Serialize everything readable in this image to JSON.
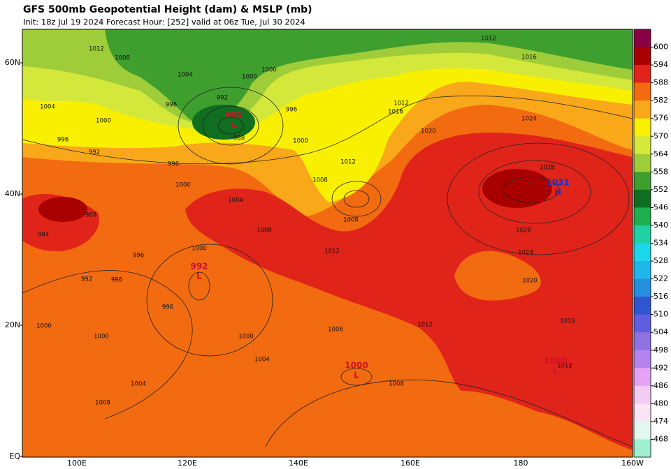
{
  "header": {
    "title": "GFS 500mb Geopotential Height (dam) & MSLP (mb)",
    "subtitle": "Init: 18z Jul 19 2024   Forecast Hour: [252]   valid at 06z Tue, Jul 30 2024"
  },
  "map": {
    "lat_labels": [
      "60N",
      "40N",
      "20N",
      "EQ"
    ],
    "lon_labels": [
      "100E",
      "120E",
      "140E",
      "160E",
      "180",
      "160W"
    ],
    "pressure_centers": [
      {
        "symbol": "H",
        "value": "1031"
      },
      {
        "symbol": "L",
        "value": "985"
      },
      {
        "symbol": "L",
        "value": "992"
      },
      {
        "symbol": "L",
        "value": "1000"
      },
      {
        "symbol": "L",
        "value": "1008"
      }
    ],
    "isobar_labels": [
      "1012",
      "1008",
      "1004",
      "1000",
      "1000",
      "992",
      "996",
      "996",
      "1004",
      "1000",
      "996",
      "992",
      "996",
      "1000",
      "1004",
      "1008",
      "1008",
      "1012",
      "1000",
      "988",
      "1012",
      "1016",
      "1020",
      "1024",
      "1028",
      "1028",
      "1024",
      "1020",
      "1016",
      "1012",
      "1012",
      "1008",
      "1008",
      "1008",
      "1004",
      "1000",
      "1004",
      "1008",
      "1000",
      "1000",
      "996",
      "996",
      "992",
      "996",
      "1000",
      "984",
      "988",
      "1016",
      "1012",
      "1012"
    ]
  },
  "colorbar": {
    "labels": [
      600,
      594,
      588,
      582,
      576,
      570,
      564,
      558,
      552,
      546,
      540,
      534,
      528,
      522,
      516,
      510,
      504,
      498,
      492,
      486,
      480,
      474,
      468
    ],
    "colors": [
      "#8a0046",
      "#a80000",
      "#e0241a",
      "#f26b10",
      "#f9a81a",
      "#f8f000",
      "#d4e83c",
      "#9fcd3a",
      "#3e9e2e",
      "#0f6e1f",
      "#1fae4e",
      "#1fd0a4",
      "#1ed6ea",
      "#1fb6ea",
      "#2490de",
      "#2f56cf",
      "#5f5fdf",
      "#8e72df",
      "#b383ee",
      "#e6a2f2",
      "#f2caf2",
      "#f8e4f2",
      "#e2f8f0",
      "#9ff0d0"
    ]
  }
}
